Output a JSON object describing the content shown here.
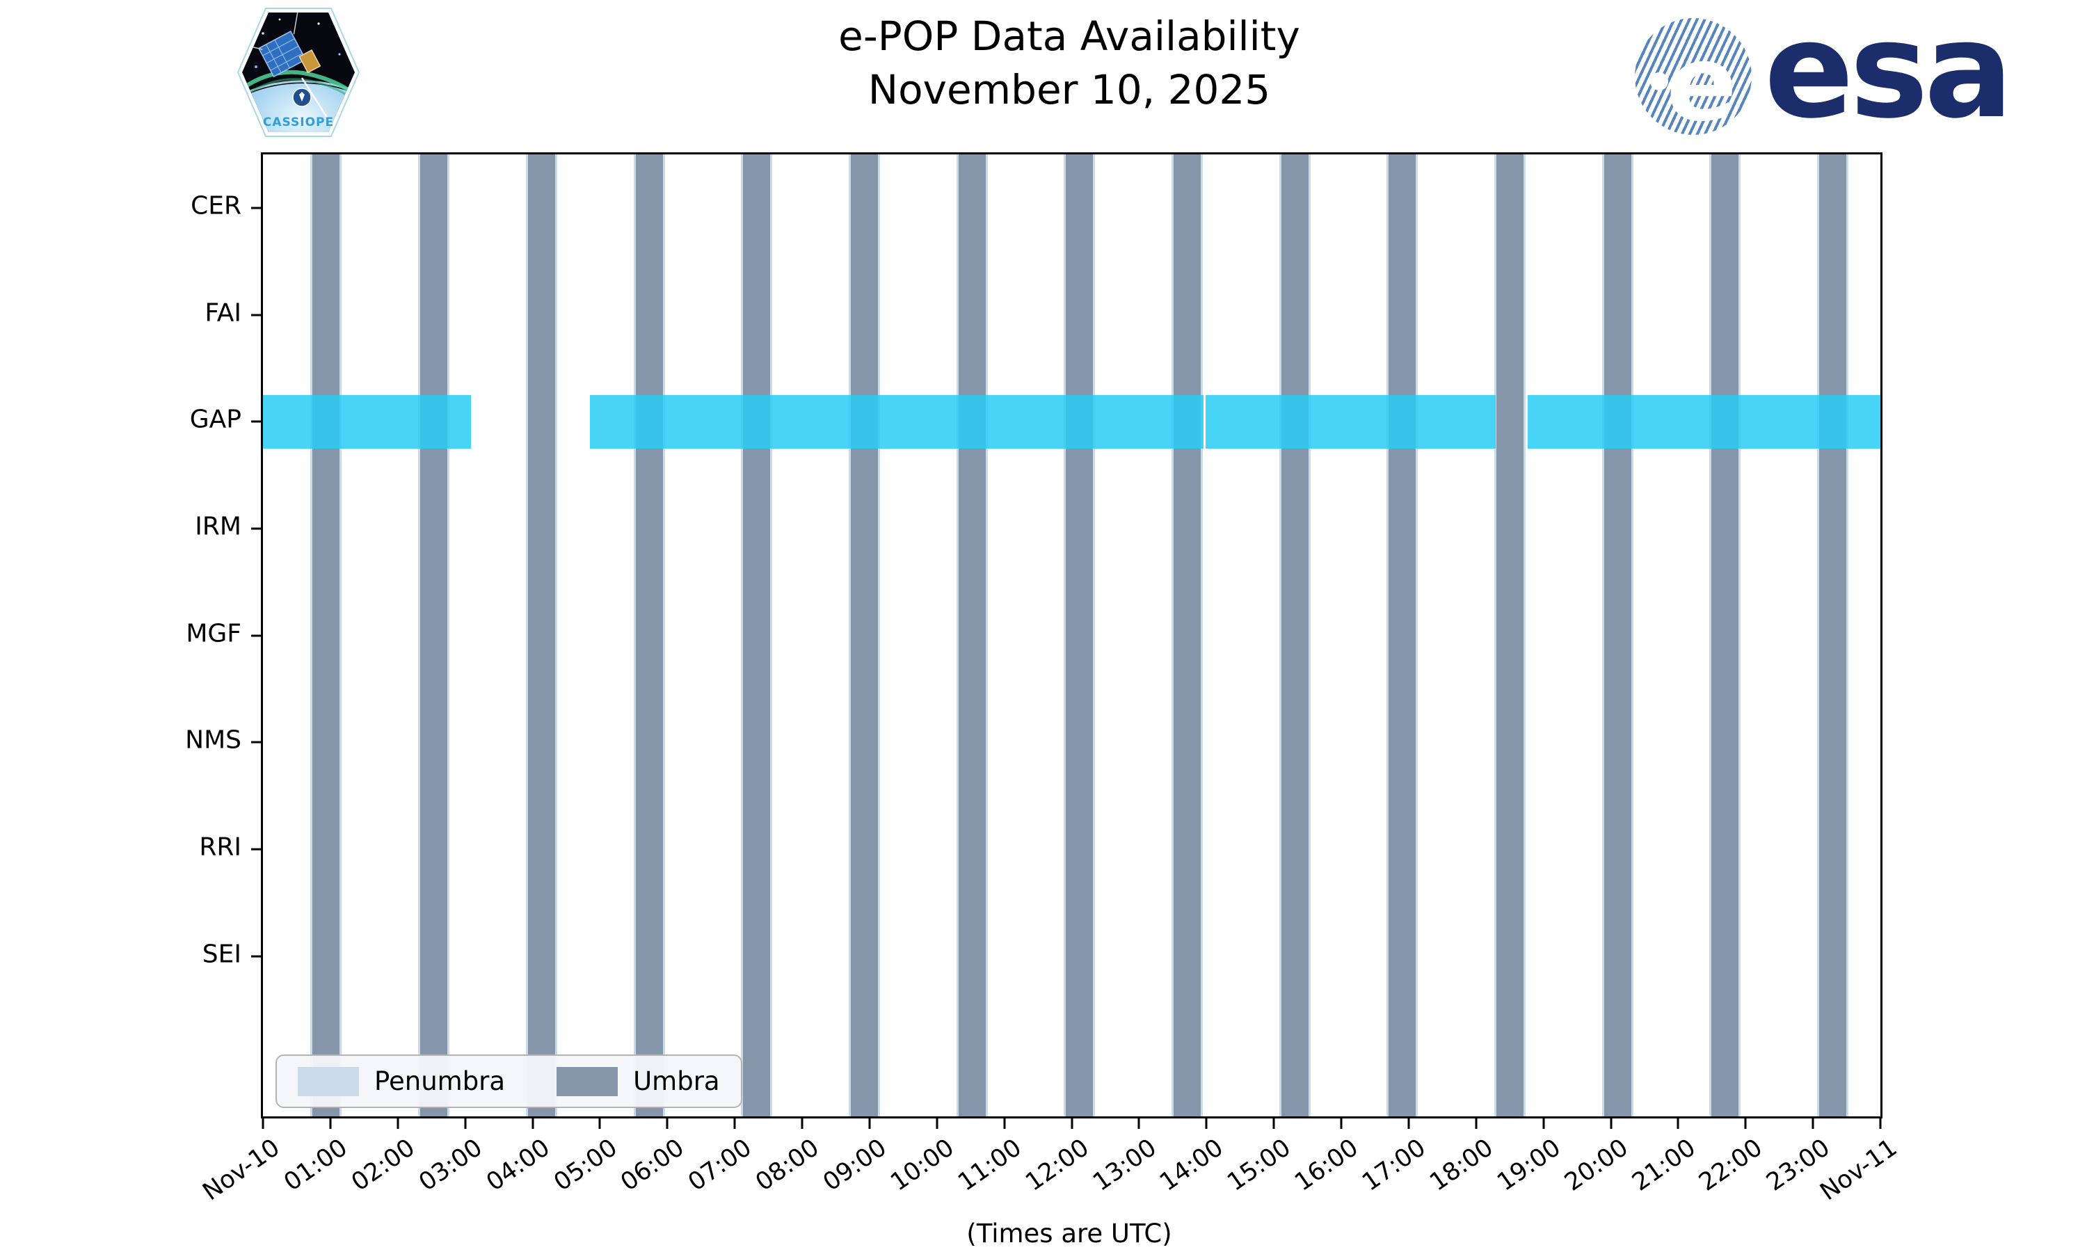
{
  "title": {
    "line1": "e-POP Data Availability",
    "line2": "November 10, 2025"
  },
  "xaxis_title": "(Times are UTC)",
  "logos": {
    "cassiope_label": "CASSIOPE",
    "esa_label": "esa"
  },
  "legend": {
    "items": [
      {
        "label": "Penumbra",
        "color": "#cbdae9"
      },
      {
        "label": "Umbra",
        "color": "#8595aa"
      }
    ]
  },
  "chart_data": {
    "type": "timeline-availability",
    "title": "e-POP Data Availability November 10, 2025",
    "xlabel": "(Times are UTC)",
    "x_range_hours": [
      0,
      24
    ],
    "x_tick_labels": [
      "Nov-10",
      "01:00",
      "02:00",
      "03:00",
      "04:00",
      "05:00",
      "06:00",
      "07:00",
      "08:00",
      "09:00",
      "10:00",
      "11:00",
      "12:00",
      "13:00",
      "14:00",
      "15:00",
      "16:00",
      "17:00",
      "18:00",
      "19:00",
      "20:00",
      "21:00",
      "22:00",
      "23:00",
      "Nov-11"
    ],
    "instruments": [
      "CER",
      "FAI",
      "GAP",
      "IRM",
      "MGF",
      "NMS",
      "RRI",
      "SEI"
    ],
    "colors": {
      "umbra": "#8595aa",
      "penumbra": "#cbdae9",
      "availability": "rgba(40,205,245,0.85)",
      "axis": "#000000"
    },
    "umbra_bars": {
      "width_hours": 0.4,
      "penumbra_edge_hours": 0.03,
      "centers_hours": [
        0.93,
        2.53,
        4.13,
        5.73,
        7.32,
        8.92,
        10.52,
        12.11,
        13.71,
        15.31,
        16.9,
        18.5,
        20.1,
        21.69,
        23.29
      ]
    },
    "availability_segments": {
      "row": "GAP",
      "segments_hours": [
        [
          0.0,
          3.09
        ],
        [
          4.85,
          13.96
        ],
        [
          13.99,
          18.29
        ],
        [
          18.77,
          24.0
        ]
      ]
    }
  }
}
